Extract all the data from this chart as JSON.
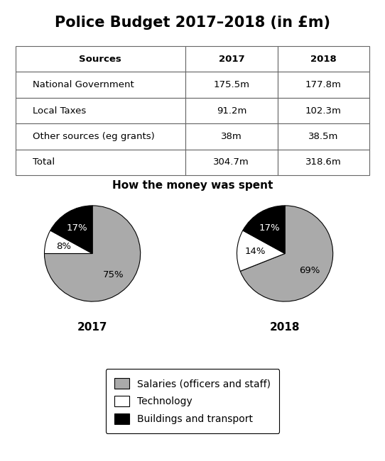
{
  "title": "Police Budget 2017–2018 (in £m)",
  "table": {
    "col_headers": [
      "Sources",
      "2017",
      "2018"
    ],
    "rows": [
      [
        "National Government",
        "175.5m",
        "177.8m"
      ],
      [
        "Local Taxes",
        "91.2m",
        "102.3m"
      ],
      [
        "Other sources (eg grants)",
        "38m",
        "38.5m"
      ],
      [
        "Total",
        "304.7m",
        "318.6m"
      ]
    ]
  },
  "pie_title": "How the money was spent",
  "pie_2017": {
    "label": "2017",
    "values": [
      75,
      8,
      17
    ],
    "labels": [
      "75%",
      "8%",
      "17%"
    ],
    "colors": [
      "#aaaaaa",
      "#ffffff",
      "#000000"
    ]
  },
  "pie_2018": {
    "label": "2018",
    "values": [
      69,
      14,
      17
    ],
    "labels": [
      "69%",
      "14%",
      "17%"
    ],
    "colors": [
      "#aaaaaa",
      "#ffffff",
      "#000000"
    ]
  },
  "legend_items": [
    {
      "label": "Salaries (officers and staff)",
      "color": "#aaaaaa"
    },
    {
      "label": "Technology",
      "color": "#ffffff"
    },
    {
      "label": "Buildings and transport",
      "color": "#000000"
    }
  ],
  "background_color": "#ffffff"
}
